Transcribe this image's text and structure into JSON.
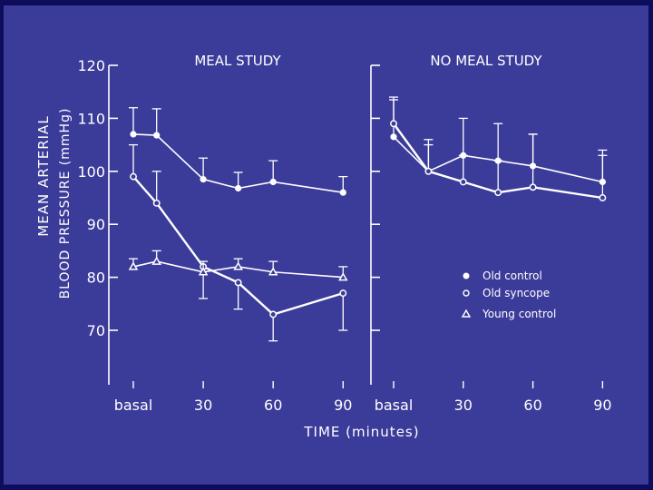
{
  "chart_data": {
    "type": "line",
    "colors": {
      "background": "#3b3b9a",
      "ink": "#ffffff",
      "border": "#0d0d5c"
    },
    "ylabel_line1": "MEAN ARTERIAL",
    "ylabel_line2": "BLOOD PRESSURE (mmHg)",
    "xlabel": "TIME (minutes)",
    "ylim": [
      60,
      120
    ],
    "yticks": [
      70,
      80,
      90,
      100,
      110,
      120
    ],
    "x": [
      "basal",
      "30",
      "45",
      "60",
      "90"
    ],
    "xtick_labels": [
      "basal",
      "30",
      "60",
      "90"
    ],
    "panels": [
      {
        "title": "MEAL STUDY",
        "series": [
          {
            "name": "Old control",
            "marker": "filled-circle",
            "values": [
              107,
              106.8,
              98.5,
              96.8,
              98,
              96
            ],
            "times": [
              0,
              10,
              30,
              45,
              60,
              90
            ],
            "errors": [
              5,
              5,
              4,
              3,
              4,
              3
            ]
          },
          {
            "name": "Old syncope",
            "marker": "open-circle",
            "values": [
              99,
              94,
              82,
              79,
              73,
              77
            ],
            "times": [
              0,
              10,
              30,
              45,
              60,
              90
            ],
            "errors": [
              6,
              6,
              6,
              5,
              5,
              7
            ]
          },
          {
            "name": "Young control",
            "marker": "open-triangle",
            "values": [
              82,
              83,
              81,
              82,
              81,
              80
            ],
            "times": [
              0,
              10,
              30,
              45,
              60,
              90
            ],
            "errors": [
              1.5,
              2,
              2,
              1.5,
              2,
              2
            ]
          }
        ]
      },
      {
        "title": "NO MEAL STUDY",
        "series": [
          {
            "name": "Old control",
            "marker": "filled-circle",
            "values": [
              106.5,
              100,
              103,
              102,
              101,
              98
            ],
            "times": [
              0,
              15,
              30,
              45,
              60,
              90
            ],
            "errors": [
              7,
              5,
              7,
              7,
              6,
              5
            ]
          },
          {
            "name": "Old syncope",
            "marker": "open-circle",
            "values": [
              109,
              100,
              98,
              96,
              97,
              95
            ],
            "times": [
              0,
              15,
              30,
              45,
              60,
              90
            ],
            "errors": [
              5,
              6,
              5,
              6,
              10,
              9
            ]
          }
        ]
      }
    ],
    "legend": {
      "position": "right-panel-lower",
      "entries": [
        {
          "label": "Old control",
          "marker": "filled-circle"
        },
        {
          "label": "Old syncope",
          "marker": "open-circle"
        },
        {
          "label": "Young control",
          "marker": "open-triangle"
        }
      ]
    }
  }
}
